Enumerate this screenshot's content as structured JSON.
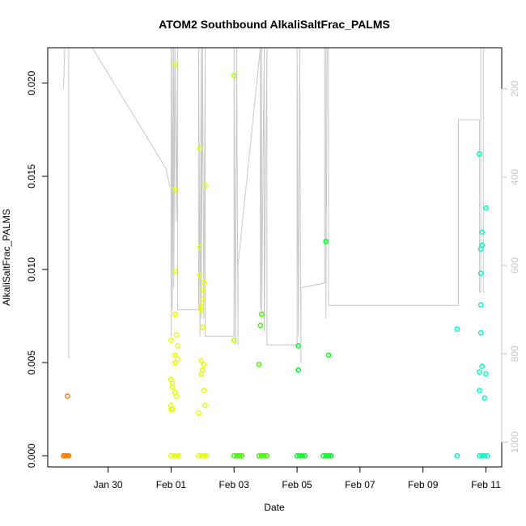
{
  "chart_data": {
    "type": "scatter",
    "title": "ATOM2 Southbound AlkaliSaltFrac_PALMS",
    "xlabel": "Date",
    "ylabel": "AlkaliSaltFrac_PALMS",
    "x_ticks": [
      "Jan 30",
      "Feb 01",
      "Feb 03",
      "Feb 05",
      "Feb 07",
      "Feb 09",
      "Feb 11"
    ],
    "x_tick_dates": [
      "2017-01-30",
      "2017-02-01",
      "2017-02-03",
      "2017-02-05",
      "2017-02-07",
      "2017-02-09",
      "2017-02-11"
    ],
    "xlim": [
      "2017-01-28T02:00",
      "2017-02-11T12:00"
    ],
    "y_ticks": [
      "0.000",
      "0.005",
      "0.010",
      "0.015",
      "0.020"
    ],
    "ylim": [
      -0.0006,
      0.0219
    ],
    "right_axis": {
      "label": "",
      "ticks": [
        "200",
        "400",
        "600",
        "800",
        "1000"
      ],
      "tick_values": [
        200,
        400,
        600,
        800,
        1000
      ],
      "ylim": [
        1056,
        107
      ],
      "color": "#c8c8c8"
    },
    "grid": false,
    "legend": "none",
    "marker_colors": {
      "orange": "#ff8000",
      "yellow": "#e6ff00",
      "yellow_green": "#b0ff00",
      "green": "#40ff00",
      "bright_green": "#00ff20",
      "cyan_green": "#00ff90",
      "cyan": "#00ffc0"
    },
    "altitude_line_color": "#c8c8c8",
    "series": [
      {
        "color": "orange",
        "points": [
          [
            "2017-01-28T17:00",
            0.0032
          ],
          [
            "2017-01-28T14:00",
            0.0
          ],
          [
            "2017-01-28T15:00",
            0.0
          ],
          [
            "2017-01-28T16:00",
            0.0
          ],
          [
            "2017-01-28T17:00",
            0.0
          ],
          [
            "2017-01-28T18:00",
            0.0
          ]
        ]
      },
      {
        "color": "yellow",
        "points": [
          [
            "2017-02-01T03:00",
            0.021
          ],
          [
            "2017-02-01T03:00",
            0.0143
          ],
          [
            "2017-02-01T03:00",
            0.0099
          ],
          [
            "2017-02-01T03:00",
            0.0076
          ],
          [
            "2017-02-01T00:00",
            0.0062
          ],
          [
            "2017-02-01T04:00",
            0.0065
          ],
          [
            "2017-02-01T05:00",
            0.0059
          ],
          [
            "2017-02-01T03:00",
            0.0054
          ],
          [
            "2017-02-01T05:00",
            0.0052
          ],
          [
            "2017-02-01T03:00",
            0.005
          ],
          [
            "2017-02-01T00:00",
            0.0041
          ],
          [
            "2017-02-01T01:00",
            0.0039
          ],
          [
            "2017-02-01T01:00",
            0.0037
          ],
          [
            "2017-02-01T03:00",
            0.0034
          ],
          [
            "2017-02-01T04:00",
            0.0032
          ],
          [
            "2017-02-01T00:00",
            0.0027
          ],
          [
            "2017-02-01T00:00",
            0.0025
          ],
          [
            "2017-02-01T01:00",
            0.0025
          ],
          [
            "2017-02-01T22:00",
            0.0165
          ],
          [
            "2017-02-02T02:00",
            0.0145
          ],
          [
            "2017-02-01T22:00",
            0.0112
          ],
          [
            "2017-02-01T22:00",
            0.0097
          ],
          [
            "2017-02-02T01:00",
            0.0093
          ],
          [
            "2017-02-02T00:00",
            0.0089
          ],
          [
            "2017-02-02T00:00",
            0.0084
          ],
          [
            "2017-02-01T23:00",
            0.008
          ],
          [
            "2017-02-01T23:00",
            0.0078
          ],
          [
            "2017-02-02T00:00",
            0.0069
          ],
          [
            "2017-02-01T23:00",
            0.0051
          ],
          [
            "2017-02-02T01:00",
            0.0049
          ],
          [
            "2017-02-02T00:00",
            0.0046
          ],
          [
            "2017-02-01T23:00",
            0.0044
          ],
          [
            "2017-02-02T01:00",
            0.0035
          ],
          [
            "2017-02-02T02:00",
            0.0027
          ],
          [
            "2017-02-01T21:00",
            0.0023
          ],
          [
            "2017-02-01T00:00",
            0.0
          ],
          [
            "2017-02-01T02:00",
            0.0
          ],
          [
            "2017-02-01T04:00",
            0.0
          ],
          [
            "2017-02-01T06:00",
            0.0
          ],
          [
            "2017-02-01T21:00",
            0.0
          ],
          [
            "2017-02-01T23:00",
            0.0
          ],
          [
            "2017-02-02T01:00",
            0.0
          ],
          [
            "2017-02-02T03:00",
            0.0
          ]
        ]
      },
      {
        "color": "yellow_green",
        "points": [
          [
            "2017-02-03T00:00",
            0.0204
          ],
          [
            "2017-02-03T00:00",
            0.0062
          ]
        ]
      },
      {
        "color": "green",
        "points": [
          [
            "2017-02-03T21:00",
            0.0076
          ],
          [
            "2017-02-03T20:00",
            0.007
          ],
          [
            "2017-02-03T19:00",
            0.0049
          ],
          [
            "2017-02-03T00:00",
            0.0
          ],
          [
            "2017-02-03T02:00",
            0.0
          ],
          [
            "2017-02-03T04:00",
            0.0
          ],
          [
            "2017-02-03T06:00",
            0.0
          ],
          [
            "2017-02-03T19:00",
            0.0
          ],
          [
            "2017-02-03T21:00",
            0.0
          ],
          [
            "2017-02-03T23:00",
            0.0
          ],
          [
            "2017-02-04T01:00",
            0.0
          ]
        ]
      },
      {
        "color": "bright_green",
        "points": [
          [
            "2017-02-05T01:00",
            0.0059
          ],
          [
            "2017-02-05T01:00",
            0.0046
          ],
          [
            "2017-02-05T22:00",
            0.0115
          ],
          [
            "2017-02-06T00:00",
            0.0054
          ],
          [
            "2017-02-05T00:00",
            0.0
          ],
          [
            "2017-02-05T02:00",
            0.0
          ],
          [
            "2017-02-05T04:00",
            0.0
          ],
          [
            "2017-02-05T06:00",
            0.0
          ],
          [
            "2017-02-05T20:00",
            0.0
          ],
          [
            "2017-02-05T22:00",
            0.0
          ],
          [
            "2017-02-06T00:00",
            0.0
          ],
          [
            "2017-02-06T02:00",
            0.0
          ]
        ]
      },
      {
        "color": "cyan",
        "points": [
          [
            "2017-02-10T02:00",
            0.0068
          ],
          [
            "2017-02-10T02:00",
            0.0
          ],
          [
            "2017-02-10T19:00",
            0.0162
          ],
          [
            "2017-02-11T00:00",
            0.0133
          ],
          [
            "2017-02-10T21:00",
            0.012
          ],
          [
            "2017-02-10T21:00",
            0.0113
          ],
          [
            "2017-02-10T20:00",
            0.0111
          ],
          [
            "2017-02-10T20:00",
            0.0098
          ],
          [
            "2017-02-10T20:00",
            0.0081
          ],
          [
            "2017-02-10T20:00",
            0.0066
          ],
          [
            "2017-02-10T21:00",
            0.0048
          ],
          [
            "2017-02-10T19:00",
            0.0045
          ],
          [
            "2017-02-11T00:00",
            0.0044
          ],
          [
            "2017-02-10T19:00",
            0.0035
          ],
          [
            "2017-02-10T23:00",
            0.0031
          ],
          [
            "2017-02-10T19:00",
            0.0
          ],
          [
            "2017-02-10T21:00",
            0.0
          ],
          [
            "2017-02-10T23:00",
            0.0
          ],
          [
            "2017-02-11T01:00",
            0.0
          ]
        ]
      }
    ],
    "altitude_path": [
      [
        "2017-01-28T14:00",
        200
      ],
      [
        "2017-01-28T15:00",
        100
      ],
      [
        "2017-01-28T18:00",
        100
      ],
      [
        "2017-01-28T18:00",
        810
      ],
      [
        "2017-01-28T18:00",
        100
      ],
      [
        "2017-01-29T12:00",
        100
      ],
      [
        "2017-01-31T20:00",
        380
      ],
      [
        "2017-01-31T23:00",
        420
      ],
      [
        "2017-02-01T00:00",
        420
      ],
      [
        "2017-02-01T00:00",
        100
      ],
      [
        "2017-02-01T00:00",
        760
      ],
      [
        "2017-02-01T01:00",
        100
      ],
      [
        "2017-02-01T01:00",
        700
      ],
      [
        "2017-02-01T02:00",
        100
      ],
      [
        "2017-02-01T02:00",
        650
      ],
      [
        "2017-02-01T03:00",
        100
      ],
      [
        "2017-02-01T04:00",
        500
      ],
      [
        "2017-02-01T05:00",
        100
      ],
      [
        "2017-02-01T05:00",
        700
      ],
      [
        "2017-02-01T21:00",
        700
      ],
      [
        "2017-02-01T21:00",
        100
      ],
      [
        "2017-02-01T22:00",
        760
      ],
      [
        "2017-02-01T23:00",
        100
      ],
      [
        "2017-02-01T23:00",
        720
      ],
      [
        "2017-02-02T00:00",
        100
      ],
      [
        "2017-02-02T01:00",
        720
      ],
      [
        "2017-02-02T02:00",
        100
      ],
      [
        "2017-02-02T02:00",
        760
      ],
      [
        "2017-02-03T00:00",
        760
      ],
      [
        "2017-02-03T00:00",
        100
      ],
      [
        "2017-02-03T01:00",
        780
      ],
      [
        "2017-02-03T02:00",
        100
      ],
      [
        "2017-02-03T03:00",
        780
      ],
      [
        "2017-02-03T03:00",
        600
      ],
      [
        "2017-02-03T20:00",
        100
      ],
      [
        "2017-02-03T20:00",
        700
      ],
      [
        "2017-02-03T21:00",
        100
      ],
      [
        "2017-02-03T21:00",
        720
      ],
      [
        "2017-02-03T23:00",
        100
      ],
      [
        "2017-02-03T23:00",
        750
      ],
      [
        "2017-02-04T01:00",
        100
      ],
      [
        "2017-02-04T01:00",
        780
      ],
      [
        "2017-02-05T00:00",
        780
      ],
      [
        "2017-02-05T00:00",
        100
      ],
      [
        "2017-02-05T01:00",
        760
      ],
      [
        "2017-02-05T02:00",
        100
      ],
      [
        "2017-02-05T03:00",
        820
      ],
      [
        "2017-02-05T03:00",
        650
      ],
      [
        "2017-02-05T21:00",
        640
      ],
      [
        "2017-02-05T21:00",
        100
      ],
      [
        "2017-02-05T22:00",
        100
      ],
      [
        "2017-02-05T22:00",
        720
      ],
      [
        "2017-02-05T23:00",
        100
      ],
      [
        "2017-02-06T00:00",
        100
      ],
      [
        "2017-02-06T00:00",
        690
      ],
      [
        "2017-02-10T03:00",
        690
      ],
      [
        "2017-02-10T03:00",
        270
      ],
      [
        "2017-02-10T19:00",
        270
      ],
      [
        "2017-02-10T19:00",
        660
      ],
      [
        "2017-02-10T20:00",
        660
      ],
      [
        "2017-02-10T20:00",
        100
      ],
      [
        "2017-02-10T22:00",
        100
      ],
      [
        "2017-02-10T22:00",
        660
      ],
      [
        "2017-02-10T23:00",
        660
      ]
    ]
  }
}
